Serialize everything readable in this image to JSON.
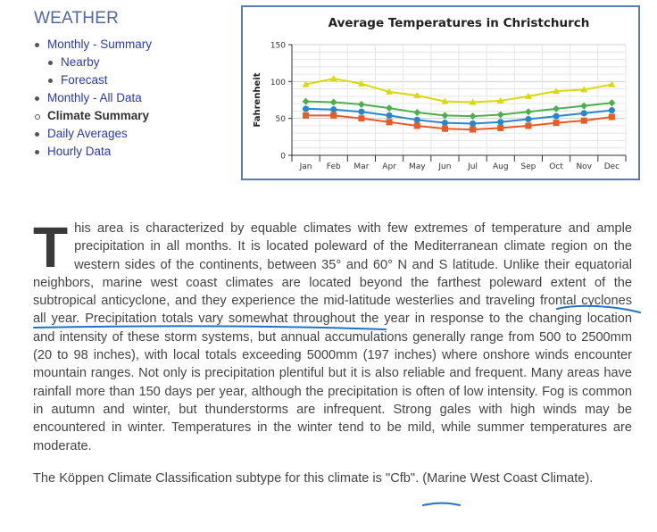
{
  "sidebar": {
    "title": "WEATHER",
    "items": [
      {
        "label": "Monthly - Summary",
        "level": 0,
        "current": false
      },
      {
        "label": "Nearby",
        "level": 1,
        "current": false
      },
      {
        "label": "Forecast",
        "level": 1,
        "current": false
      },
      {
        "label": "Monthly - All Data",
        "level": 0,
        "current": false
      },
      {
        "label": "Climate Summary",
        "level": 0,
        "current": true
      },
      {
        "label": "Daily Averages",
        "level": 0,
        "current": false
      },
      {
        "label": "Hourly Data",
        "level": 0,
        "current": false
      }
    ]
  },
  "chart_data": {
    "type": "line",
    "title": "Average Temperatures in Christchurch",
    "ylabel": "Fahrenheit",
    "xlabel": "",
    "categories": [
      "Jan",
      "Feb",
      "Mar",
      "Apr",
      "May",
      "Jun",
      "Jul",
      "Aug",
      "Sep",
      "Oct",
      "Nov",
      "Dec"
    ],
    "yticks": [
      0,
      50,
      100,
      150
    ],
    "ylim": [
      0,
      150
    ],
    "grid": true,
    "series": [
      {
        "color": "#d9d90a",
        "marker": "triangle",
        "values": [
          96,
          104,
          97,
          86,
          81,
          73,
          72,
          74,
          80,
          87,
          89,
          96
        ]
      },
      {
        "color": "#4cae4c",
        "marker": "diamond",
        "values": [
          73,
          72,
          69,
          64,
          58,
          54,
          53,
          55,
          59,
          63,
          67,
          71
        ]
      },
      {
        "color": "#2a86c8",
        "marker": "circle",
        "values": [
          63,
          62,
          59,
          54,
          48,
          44,
          43,
          45,
          49,
          53,
          57,
          61
        ]
      },
      {
        "color": "#e85a28",
        "marker": "square",
        "values": [
          54,
          54,
          50,
          45,
          40,
          36,
          35,
          37,
          40,
          44,
          47,
          52
        ]
      }
    ]
  },
  "article": {
    "dropcap": "T",
    "p1_a": "his area is characterized by equable climates with few extremes of temperature and ample precipitation in all months. It is located poleward of the Mediterranean climate region on the western sides of the continents, between 35° and 60° N and S latitude. Unlike their equatorial neighbors, marine west coast climates are located beyond the farthest poleward extent of the subtropical anticyclone, and they experience the ",
    "p1_hl": "mid-latitude westerlies and traveling frontal cyclones all year.",
    "p1_b": " Precipitation totals vary somewhat throughout the year in response to the changing location and intensity of these storm systems, but annual accumulations generally range from 500 to 2500mm (20 to 98 inches), with local totals exceeding 5000mm (197 inches) where onshore winds encounter mountain ranges. Not only is precipitation plentiful but it is also reliable and frequent. Many areas have rainfall more than 150 days per year, although the precipitation is often of low intensity. Fog is common in autumn and winter, but thunderstorms are infrequent. Strong gales with high winds may be encountered in winter. Temperatures in the winter tend to be mild, while summer temperatures are moderate.",
    "p2_a": "The Köppen Climate Classification subtype for this climate is ",
    "p2_code": "\"Cfb\"",
    "p2_b": ". (Marine West Coast Climate)."
  },
  "annotations": {
    "ink_color": "#1e73c8"
  }
}
